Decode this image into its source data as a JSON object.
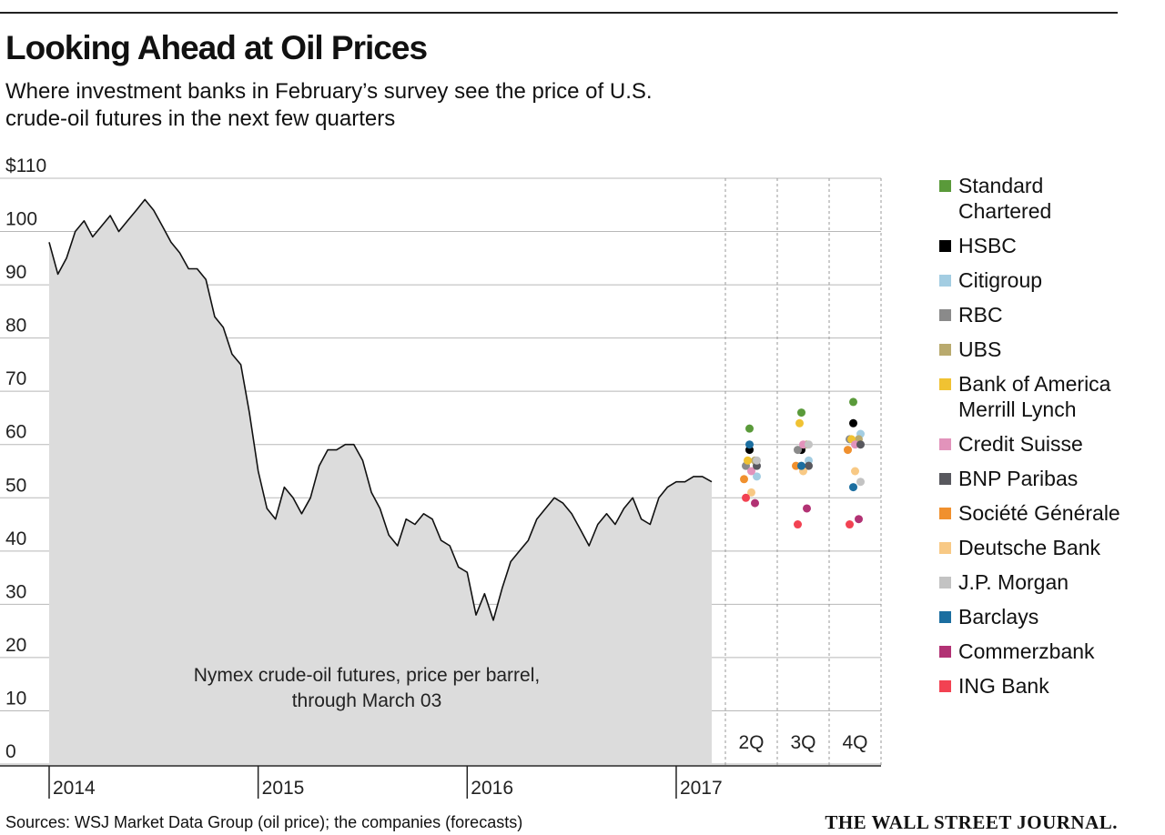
{
  "chart_data": {
    "type": "line",
    "title": "Looking Ahead at Oil Prices",
    "subtitle": "Where investment banks in February’s survey see the price of U.S. crude-oil futures in the next few quarters",
    "annotation": [
      "Nymex crude-oil futures, price per barrel,",
      "through March 03"
    ],
    "source": "Sources: WSJ Market Data Group (oil price); the companies (forecasts)",
    "publisher": "THE WALL STREET JOURNAL.",
    "xlim": [
      2014,
      2017.17
    ],
    "xticks": [
      2014,
      2015,
      2016,
      2017
    ],
    "ylim": [
      0,
      110
    ],
    "yticks": [
      0,
      10,
      20,
      30,
      40,
      50,
      60,
      70,
      80,
      90,
      100,
      {
        "value": 110,
        "label": "$110"
      }
    ],
    "grid": true,
    "line_color": "#111111",
    "fill_color": "#dcdcdc",
    "x": [
      2014.0,
      2014.042,
      2014.083,
      2014.125,
      2014.167,
      2014.208,
      2014.25,
      2014.292,
      2014.333,
      2014.375,
      2014.417,
      2014.458,
      2014.5,
      2014.542,
      2014.583,
      2014.625,
      2014.667,
      2014.708,
      2014.75,
      2014.792,
      2014.833,
      2014.875,
      2014.917,
      2014.958,
      2015.0,
      2015.042,
      2015.083,
      2015.125,
      2015.167,
      2015.208,
      2015.25,
      2015.292,
      2015.333,
      2015.375,
      2015.417,
      2015.458,
      2015.5,
      2015.542,
      2015.583,
      2015.625,
      2015.667,
      2015.708,
      2015.75,
      2015.792,
      2015.833,
      2015.875,
      2015.917,
      2015.958,
      2016.0,
      2016.042,
      2016.083,
      2016.125,
      2016.167,
      2016.208,
      2016.25,
      2016.292,
      2016.333,
      2016.375,
      2016.417,
      2016.458,
      2016.5,
      2016.542,
      2016.583,
      2016.625,
      2016.667,
      2016.708,
      2016.75,
      2016.792,
      2016.833,
      2016.875,
      2016.917,
      2016.958,
      2017.0,
      2017.042,
      2017.083,
      2017.125,
      2017.17
    ],
    "values": [
      98,
      92,
      95,
      100,
      102,
      99,
      101,
      103,
      100,
      102,
      104,
      106,
      104,
      101,
      98,
      96,
      93,
      93,
      91,
      84,
      82,
      77,
      75,
      66,
      55,
      48,
      46,
      52,
      50,
      47,
      50,
      56,
      59,
      59,
      60,
      60,
      57,
      51,
      48,
      43,
      41,
      46,
      45,
      47,
      46,
      42,
      41,
      37,
      36,
      28,
      32,
      27,
      33,
      38,
      40,
      42,
      46,
      48,
      50,
      49,
      47,
      44,
      41,
      45,
      47,
      45,
      48,
      50,
      46,
      45,
      50,
      52,
      53,
      53,
      54,
      54,
      53
    ],
    "forecasts": {
      "type": "scatter",
      "categories": [
        "2Q",
        "3Q",
        "4Q"
      ],
      "series": [
        {
          "name": "Standard Chartered",
          "color": "#5a9a3a",
          "values": [
            63,
            66,
            68
          ]
        },
        {
          "name": "HSBC",
          "color": "#000000",
          "values": [
            59,
            59,
            64
          ]
        },
        {
          "name": "Citigroup",
          "color": "#a3cde2",
          "values": [
            54,
            57,
            62
          ]
        },
        {
          "name": "RBC",
          "color": "#8a8a8a",
          "values": [
            56,
            59,
            61
          ]
        },
        {
          "name": "UBS",
          "color": "#b9aa6e",
          "values": [
            57,
            60,
            61
          ]
        },
        {
          "name": "Bank of America Merrill Lynch",
          "color": "#f0c232",
          "values": [
            57,
            64,
            61
          ]
        },
        {
          "name": "Credit Suisse",
          "color": "#e293bb",
          "values": [
            55,
            60,
            60
          ]
        },
        {
          "name": "BNP Paribas",
          "color": "#58585e",
          "values": [
            56,
            56,
            60
          ]
        },
        {
          "name": "Société Générale",
          "color": "#f0902e",
          "values": [
            53.5,
            56,
            59
          ]
        },
        {
          "name": "Deutsche Bank",
          "color": "#f8c985",
          "values": [
            51,
            55,
            55
          ]
        },
        {
          "name": "J.P. Morgan",
          "color": "#c3c3c3",
          "values": [
            57,
            60,
            53
          ]
        },
        {
          "name": "Barclays",
          "color": "#1b6ea0",
          "values": [
            60,
            56,
            52
          ]
        },
        {
          "name": "Commerzbank",
          "color": "#b23274",
          "values": [
            49,
            48,
            46
          ]
        },
        {
          "name": "ING Bank",
          "color": "#f24252",
          "values": [
            50,
            45,
            45
          ]
        }
      ]
    }
  }
}
